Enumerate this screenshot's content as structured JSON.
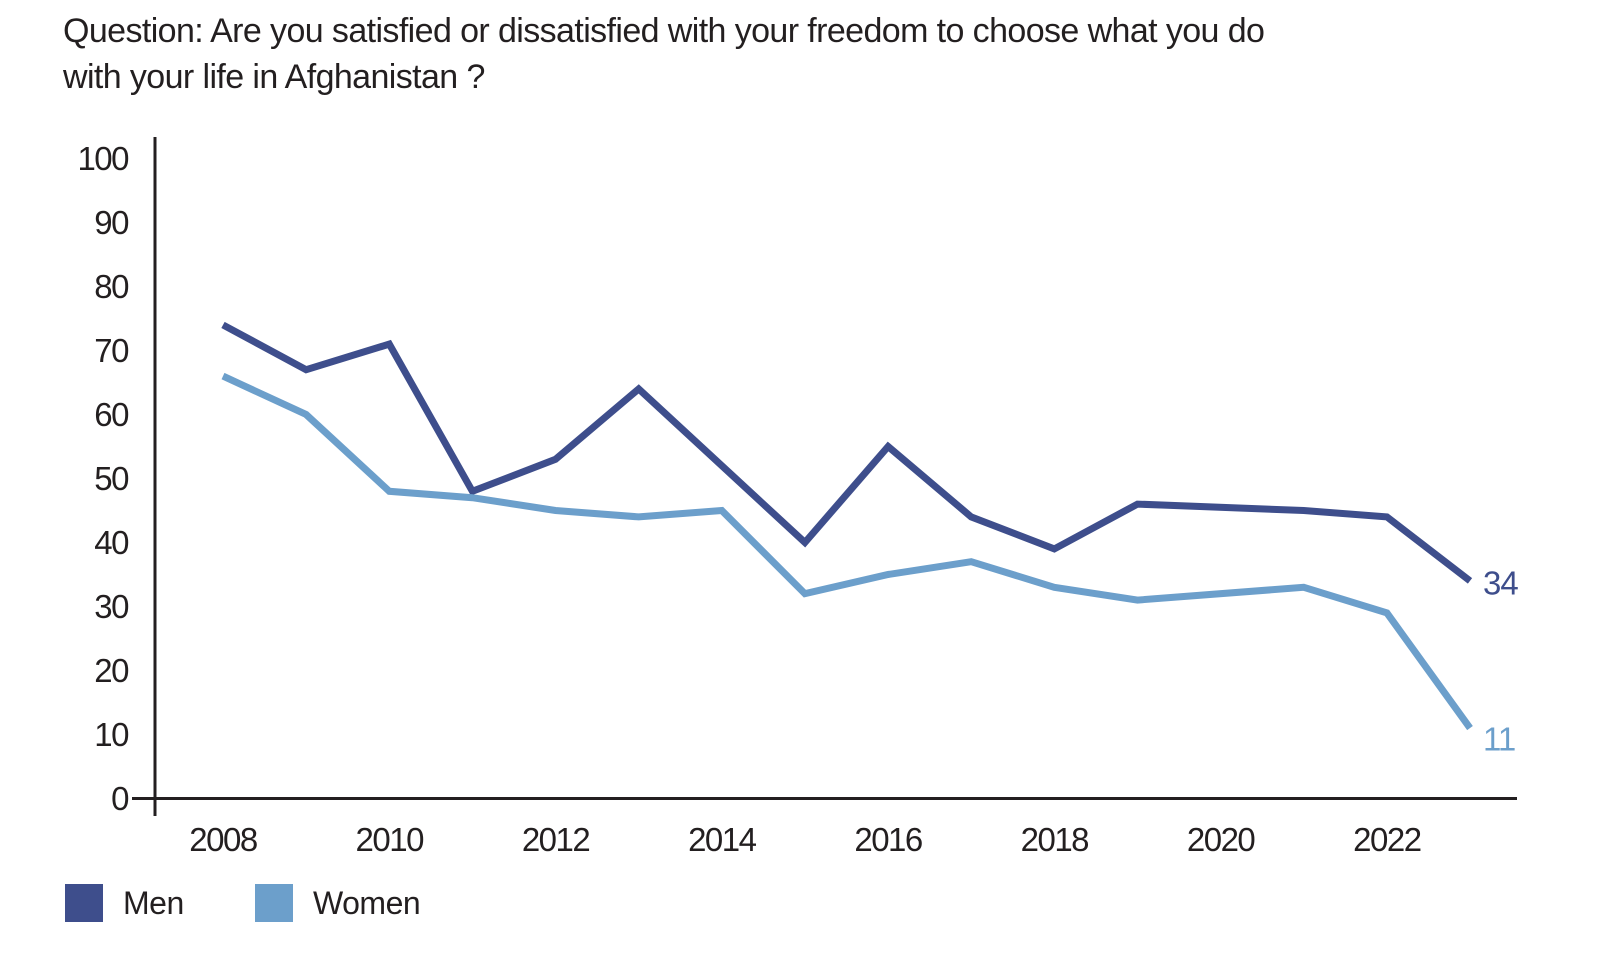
{
  "title": {
    "line1": "Question: Are you satisfied or dissatisfied with your freedom to choose what you do",
    "line2": "with your life in Afghanistan ?"
  },
  "colors": {
    "men": "#3E4E8C",
    "women": "#6C9FCB",
    "axis": "#231F20",
    "text": "#231F20",
    "background": "#FFFFFF"
  },
  "chart_data": {
    "type": "line",
    "title": "Question: Are you satisfied or dissatisfied with your freedom to choose what you do with your life in Afghanistan ?",
    "x": [
      2008,
      2009,
      2010,
      2011,
      2012,
      2013,
      2014,
      2015,
      2016,
      2017,
      2018,
      2019,
      2020,
      2021,
      2022,
      2023
    ],
    "series": [
      {
        "name": "Men",
        "color": "#3E4E8C",
        "values": [
          74,
          67,
          71,
          48,
          53,
          64,
          52,
          40,
          55,
          44,
          39,
          46,
          null,
          45,
          44,
          34
        ],
        "end_label": "34"
      },
      {
        "name": "Women",
        "color": "#6C9FCB",
        "values": [
          66,
          60,
          48,
          47,
          45,
          44,
          45,
          32,
          35,
          37,
          33,
          31,
          null,
          33,
          29,
          11
        ],
        "end_label": "11"
      }
    ],
    "ylim": [
      0,
      100
    ],
    "y_ticks": [
      0,
      10,
      20,
      30,
      40,
      50,
      60,
      70,
      80,
      90,
      100
    ],
    "x_tick_labels": [
      "2008",
      "2010",
      "2012",
      "2014",
      "2016",
      "2018",
      "2020",
      "2022"
    ],
    "grid": false,
    "legend_position": "bottom-left",
    "note": "2020 has no data point; lines connect 2019 to 2021"
  },
  "legend": {
    "items": [
      {
        "label": "Men"
      },
      {
        "label": "Women"
      }
    ]
  }
}
